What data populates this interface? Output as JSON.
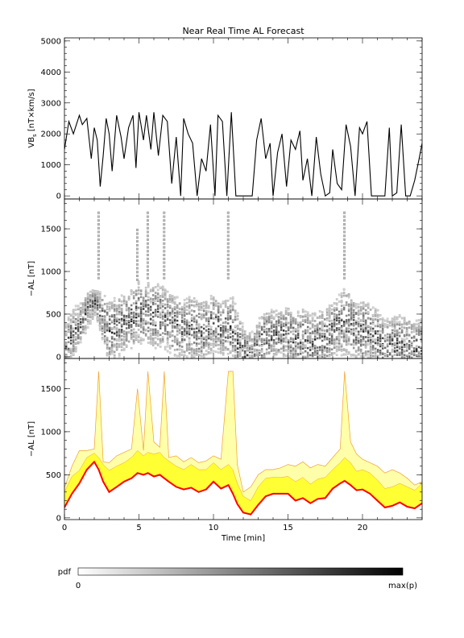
{
  "title": "Near Real Time AL Forecast",
  "chart_data": [
    {
      "type": "line",
      "ylabel": "VB",
      "ylabel_sub": "s",
      "ylabel_unit": " [nT×km/s]",
      "ylim": [
        -100,
        5100
      ],
      "yticks": [
        0,
        1000,
        2000,
        3000,
        4000,
        5000
      ],
      "xlim": [
        0,
        24
      ],
      "color": "#000000",
      "series": [
        {
          "x": [
            0,
            0.3,
            0.6,
            1,
            1.2,
            1.5,
            1.8,
            2,
            2.2,
            2.4,
            2.6,
            2.8,
            3,
            3.2,
            3.5,
            3.8,
            4,
            4.3,
            4.6,
            4.8,
            5,
            5.3,
            5.5,
            5.8,
            6,
            6.3,
            6.6,
            6.9,
            7.2,
            7.5,
            7.8,
            8,
            8.3,
            8.6,
            8.9,
            9.2,
            9.5,
            9.8,
            10.1,
            10.3,
            10.6,
            10.9,
            11.2,
            11.5,
            11.8,
            12,
            12.3,
            12.6,
            12.9,
            13.2,
            13.5,
            13.8,
            14,
            14.3,
            14.6,
            14.9,
            15.2,
            15.5,
            15.8,
            16,
            16.3,
            16.6,
            16.9,
            17.2,
            17.5,
            17.8,
            18,
            18.3,
            18.6,
            18.9,
            19.2,
            19.5,
            19.8,
            20,
            20.3,
            20.6,
            20.9,
            21.2,
            21.5,
            21.8,
            22,
            22.3,
            22.6,
            22.9,
            23.2,
            23.5,
            23.8,
            24
          ],
          "y": [
            1500,
            2400,
            2000,
            2600,
            2300,
            2500,
            1200,
            2200,
            1800,
            300,
            1300,
            2500,
            2000,
            800,
            2600,
            1900,
            1200,
            2200,
            2600,
            900,
            2700,
            1800,
            2600,
            1500,
            2700,
            1300,
            2600,
            2400,
            400,
            1900,
            0,
            2500,
            2000,
            1700,
            0,
            1200,
            800,
            2300,
            0,
            2600,
            2400,
            0,
            2700,
            0,
            0,
            0,
            0,
            0,
            1800,
            2500,
            1200,
            1700,
            0,
            1400,
            2000,
            300,
            1800,
            1500,
            2100,
            500,
            1200,
            0,
            1900,
            700,
            0,
            100,
            1500,
            400,
            200,
            2300,
            1600,
            0,
            2200,
            2000,
            2400,
            0,
            0,
            0,
            0,
            2200,
            0,
            100,
            2300,
            0,
            0,
            500,
            1200,
            1700
          ]
        }
      ]
    },
    {
      "type": "heatmap",
      "ylabel": "−AL [nT]",
      "ylim": [
        -20,
        1850
      ],
      "yticks": [
        0,
        500,
        1000,
        1500
      ],
      "xlim": [
        0,
        24
      ],
      "colorscale": [
        "#ffffff",
        "#000000"
      ],
      "peaks": [
        {
          "x": 2.3,
          "y": 1700
        },
        {
          "x": 5.6,
          "y": 1700
        },
        {
          "x": 6.7,
          "y": 1700
        },
        {
          "x": 11.0,
          "y": 1700
        },
        {
          "x": 18.8,
          "y": 1700
        },
        {
          "x": 4.9,
          "y": 1500
        }
      ]
    },
    {
      "type": "area",
      "ylabel": "−AL [nT]",
      "xlabel": "Time [min]",
      "ylim": [
        -20,
        1850
      ],
      "yticks": [
        0,
        500,
        1000,
        1500
      ],
      "xticks": [
        0,
        5,
        10,
        15,
        20
      ],
      "xlim": [
        0,
        24
      ],
      "colors": {
        "median": "#ff0000",
        "inner_band": "#ffff33",
        "outer_band": "#ffffaa",
        "band_edge": "#f0a030"
      },
      "x": [
        0,
        0.5,
        1,
        1.5,
        2,
        2.3,
        2.6,
        3,
        3.5,
        4,
        4.5,
        4.9,
        5.3,
        5.6,
        6,
        6.4,
        6.7,
        7,
        7.5,
        8,
        8.5,
        9,
        9.5,
        10,
        10.5,
        11,
        11.3,
        11.6,
        12,
        12.5,
        13,
        13.5,
        14,
        14.5,
        15,
        15.5,
        16,
        16.5,
        17,
        17.5,
        18,
        18.5,
        18.8,
        19.2,
        19.6,
        20,
        20.5,
        21,
        21.5,
        22,
        22.5,
        23,
        23.5,
        24
      ],
      "median": [
        120,
        280,
        400,
        560,
        650,
        560,
        420,
        300,
        360,
        420,
        460,
        520,
        500,
        520,
        480,
        500,
        460,
        420,
        360,
        330,
        350,
        300,
        330,
        420,
        340,
        380,
        280,
        160,
        60,
        40,
        150,
        250,
        280,
        280,
        280,
        200,
        230,
        170,
        220,
        230,
        340,
        400,
        430,
        380,
        320,
        330,
        280,
        200,
        120,
        140,
        180,
        130,
        110,
        170
      ],
      "inner_upper": [
        300,
        480,
        550,
        700,
        750,
        700,
        620,
        550,
        600,
        640,
        700,
        780,
        720,
        760,
        740,
        760,
        700,
        660,
        600,
        560,
        620,
        560,
        560,
        640,
        560,
        620,
        560,
        400,
        250,
        200,
        360,
        460,
        470,
        470,
        480,
        420,
        470,
        390,
        450,
        470,
        560,
        640,
        700,
        640,
        540,
        560,
        520,
        440,
        340,
        360,
        400,
        360,
        320,
        400
      ],
      "outer_upper": [
        350,
        600,
        780,
        780,
        800,
        1700,
        650,
        640,
        720,
        760,
        800,
        1500,
        780,
        1700,
        880,
        820,
        1700,
        700,
        720,
        650,
        700,
        640,
        660,
        720,
        680,
        1700,
        1700,
        620,
        300,
        360,
        500,
        560,
        560,
        580,
        620,
        600,
        650,
        580,
        620,
        600,
        700,
        800,
        1700,
        880,
        740,
        680,
        640,
        600,
        520,
        560,
        520,
        460,
        380,
        420
      ]
    }
  ],
  "colorbar": {
    "label": "pdf",
    "min_label": "0",
    "max_label": "max(p)"
  }
}
